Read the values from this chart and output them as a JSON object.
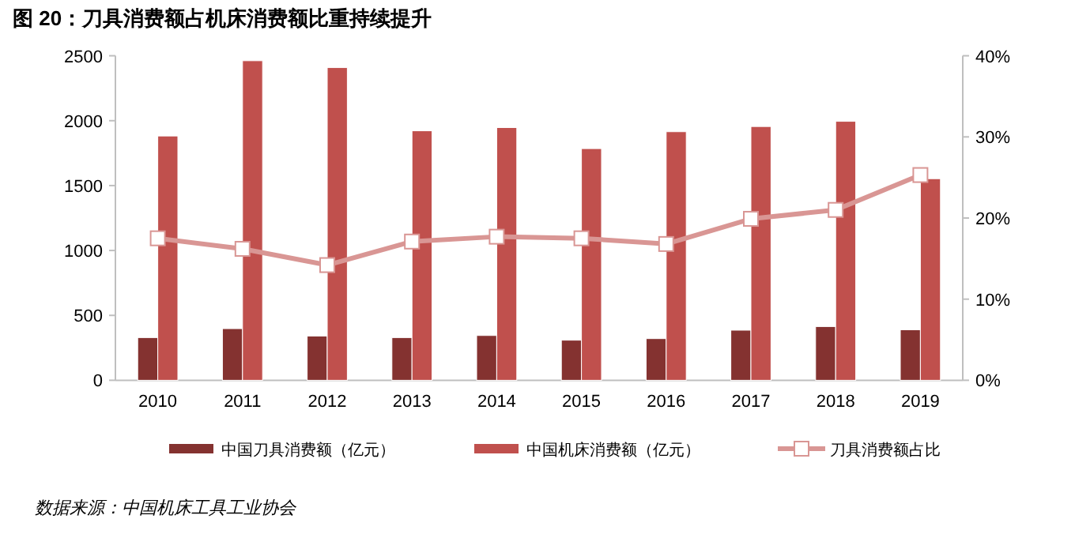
{
  "chart_data": {
    "type": "bar",
    "title": "图 20：刀具消费额占机床消费额比重持续提升",
    "annotations": [
      "数据来源：中国机床工具工业协会"
    ],
    "categories": [
      "2010",
      "2011",
      "2012",
      "2013",
      "2014",
      "2015",
      "2016",
      "2017",
      "2018",
      "2019"
    ],
    "series": [
      {
        "name": "中国刀具消费额（亿元）",
        "color": "#843230",
        "values": [
          329,
          398,
          341,
          329,
          345,
          309,
          321,
          386,
          414,
          389
        ]
      },
      {
        "name": "中国机床消费额（亿元）",
        "color": "#c0504d",
        "values": [
          1882,
          2462,
          2409,
          1922,
          1947,
          1785,
          1915,
          1955,
          1995,
          1553
        ]
      },
      {
        "name": "刀具消费额占比",
        "type": "line",
        "axis": "y2",
        "color": "#d99694",
        "values": [
          17.5,
          16.2,
          14.2,
          17.1,
          17.7,
          17.5,
          16.8,
          19.9,
          21.0,
          25.3
        ]
      }
    ],
    "ylim": [
      0,
      2500
    ],
    "yticks": [
      0,
      500,
      1000,
      1500,
      2000,
      2500
    ],
    "y2lim": [
      0,
      40
    ],
    "y2ticks": [
      {
        "value": 0,
        "label": "0%"
      },
      {
        "value": 10,
        "label": "10%"
      },
      {
        "value": 20,
        "label": "20%"
      },
      {
        "value": 30,
        "label": "30%"
      },
      {
        "value": 40,
        "label": "40%"
      }
    ],
    "marker": "square",
    "line_style": "solid",
    "legend": "bottom",
    "grid": false
  }
}
